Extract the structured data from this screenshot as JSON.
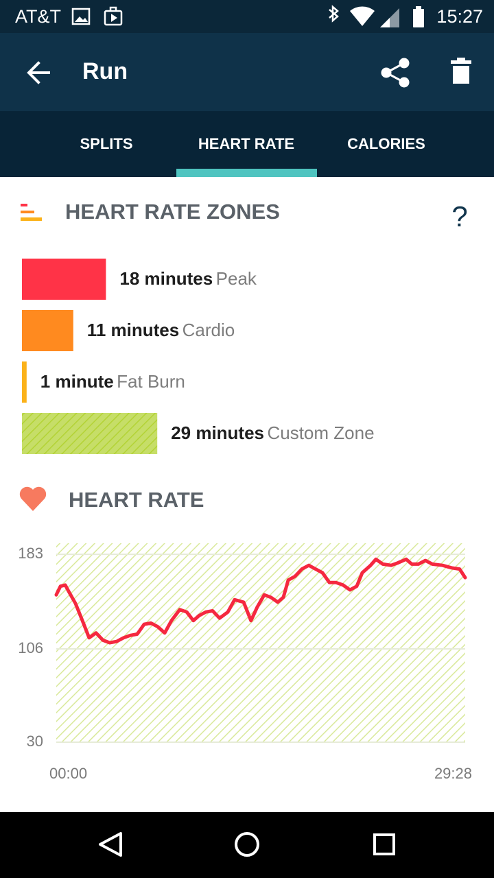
{
  "status_bar": {
    "carrier": "AT&T",
    "time": "15:27"
  },
  "app_bar": {
    "title": "Run"
  },
  "tabs": {
    "items": [
      "SPLITS",
      "HEART RATE",
      "CALORIES"
    ],
    "selected": 1
  },
  "zones": {
    "title": "HEART RATE ZONES",
    "help": "?",
    "names": [
      "Peak",
      "Cardio",
      "Fat Burn",
      "Custom Zone"
    ],
    "values": [
      18,
      11,
      1,
      29
    ],
    "value_labels": [
      "18 minutes",
      "11 minutes",
      "1 minute",
      "29 minutes"
    ],
    "colors": [
      "#ff3347",
      "#ff8a1f",
      "#fbb21a",
      "#b3d335"
    ],
    "styles": [
      "solid",
      "solid",
      "solid",
      "hatched"
    ]
  },
  "chart_data": {
    "type": "line",
    "title": "HEART RATE",
    "x": [
      0,
      18,
      39,
      53,
      83,
      113,
      142,
      172,
      202,
      231,
      261,
      291,
      320,
      350,
      380,
      409,
      439,
      469,
      498,
      534,
      564,
      593,
      617,
      647,
      676,
      706,
      742,
      771,
      810,
      842,
      869,
      899,
      928,
      958,
      982,
      1003,
      1032,
      1062,
      1092,
      1121,
      1151,
      1181,
      1210,
      1240,
      1270,
      1299,
      1323,
      1359,
      1382,
      1412,
      1448,
      1477,
      1513,
      1537,
      1566,
      1596,
      1626,
      1670,
      1709,
      1744,
      1768
    ],
    "series": [
      {
        "color": "#f5283f",
        "values": [
          150,
          157,
          158,
          153,
          143,
          129,
          115,
          119,
          113,
          111,
          112,
          115,
          117,
          118,
          126,
          127,
          124,
          119,
          129,
          138,
          136,
          129,
          133,
          136,
          137,
          131,
          136,
          146,
          144,
          129,
          140,
          150,
          148,
          144,
          148,
          162,
          165,
          171,
          174,
          171,
          168,
          160,
          160,
          158,
          154,
          157,
          168,
          174,
          179,
          175,
          174,
          176,
          179,
          175,
          175,
          178,
          175,
          174,
          172,
          171,
          164
        ]
      }
    ],
    "xlim": [
      0,
      1768
    ],
    "xticks": [
      {
        "value": 0,
        "label": "00:00"
      },
      {
        "value": 1768,
        "label": "29:28"
      }
    ],
    "ylim": [
      30,
      192
    ],
    "yticks": [
      183,
      106,
      30
    ],
    "grid": true
  }
}
